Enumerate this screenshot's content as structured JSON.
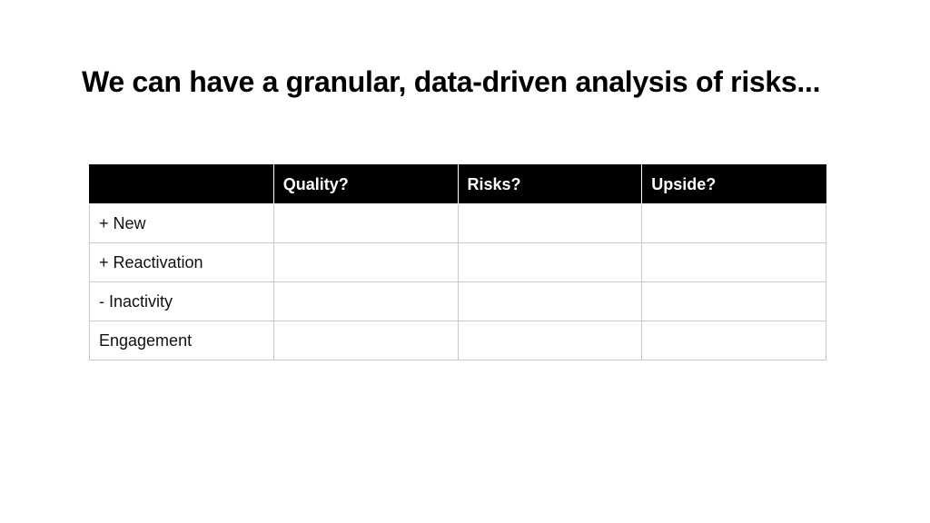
{
  "slide": {
    "title": "We can have a granular, data-driven analysis of risks..."
  },
  "table": {
    "headers": [
      "",
      "Quality?",
      "Risks?",
      "Upside?"
    ],
    "rows": [
      [
        "+ New",
        "",
        "",
        ""
      ],
      [
        "+ Reactivation",
        "",
        "",
        ""
      ],
      [
        "- Inactivity",
        "",
        "",
        ""
      ],
      [
        "Engagement",
        "",
        "",
        ""
      ]
    ]
  },
  "colors": {
    "header_background": "#000000",
    "header_text": "#ffffff",
    "grid_line": "#c9c9c9"
  }
}
